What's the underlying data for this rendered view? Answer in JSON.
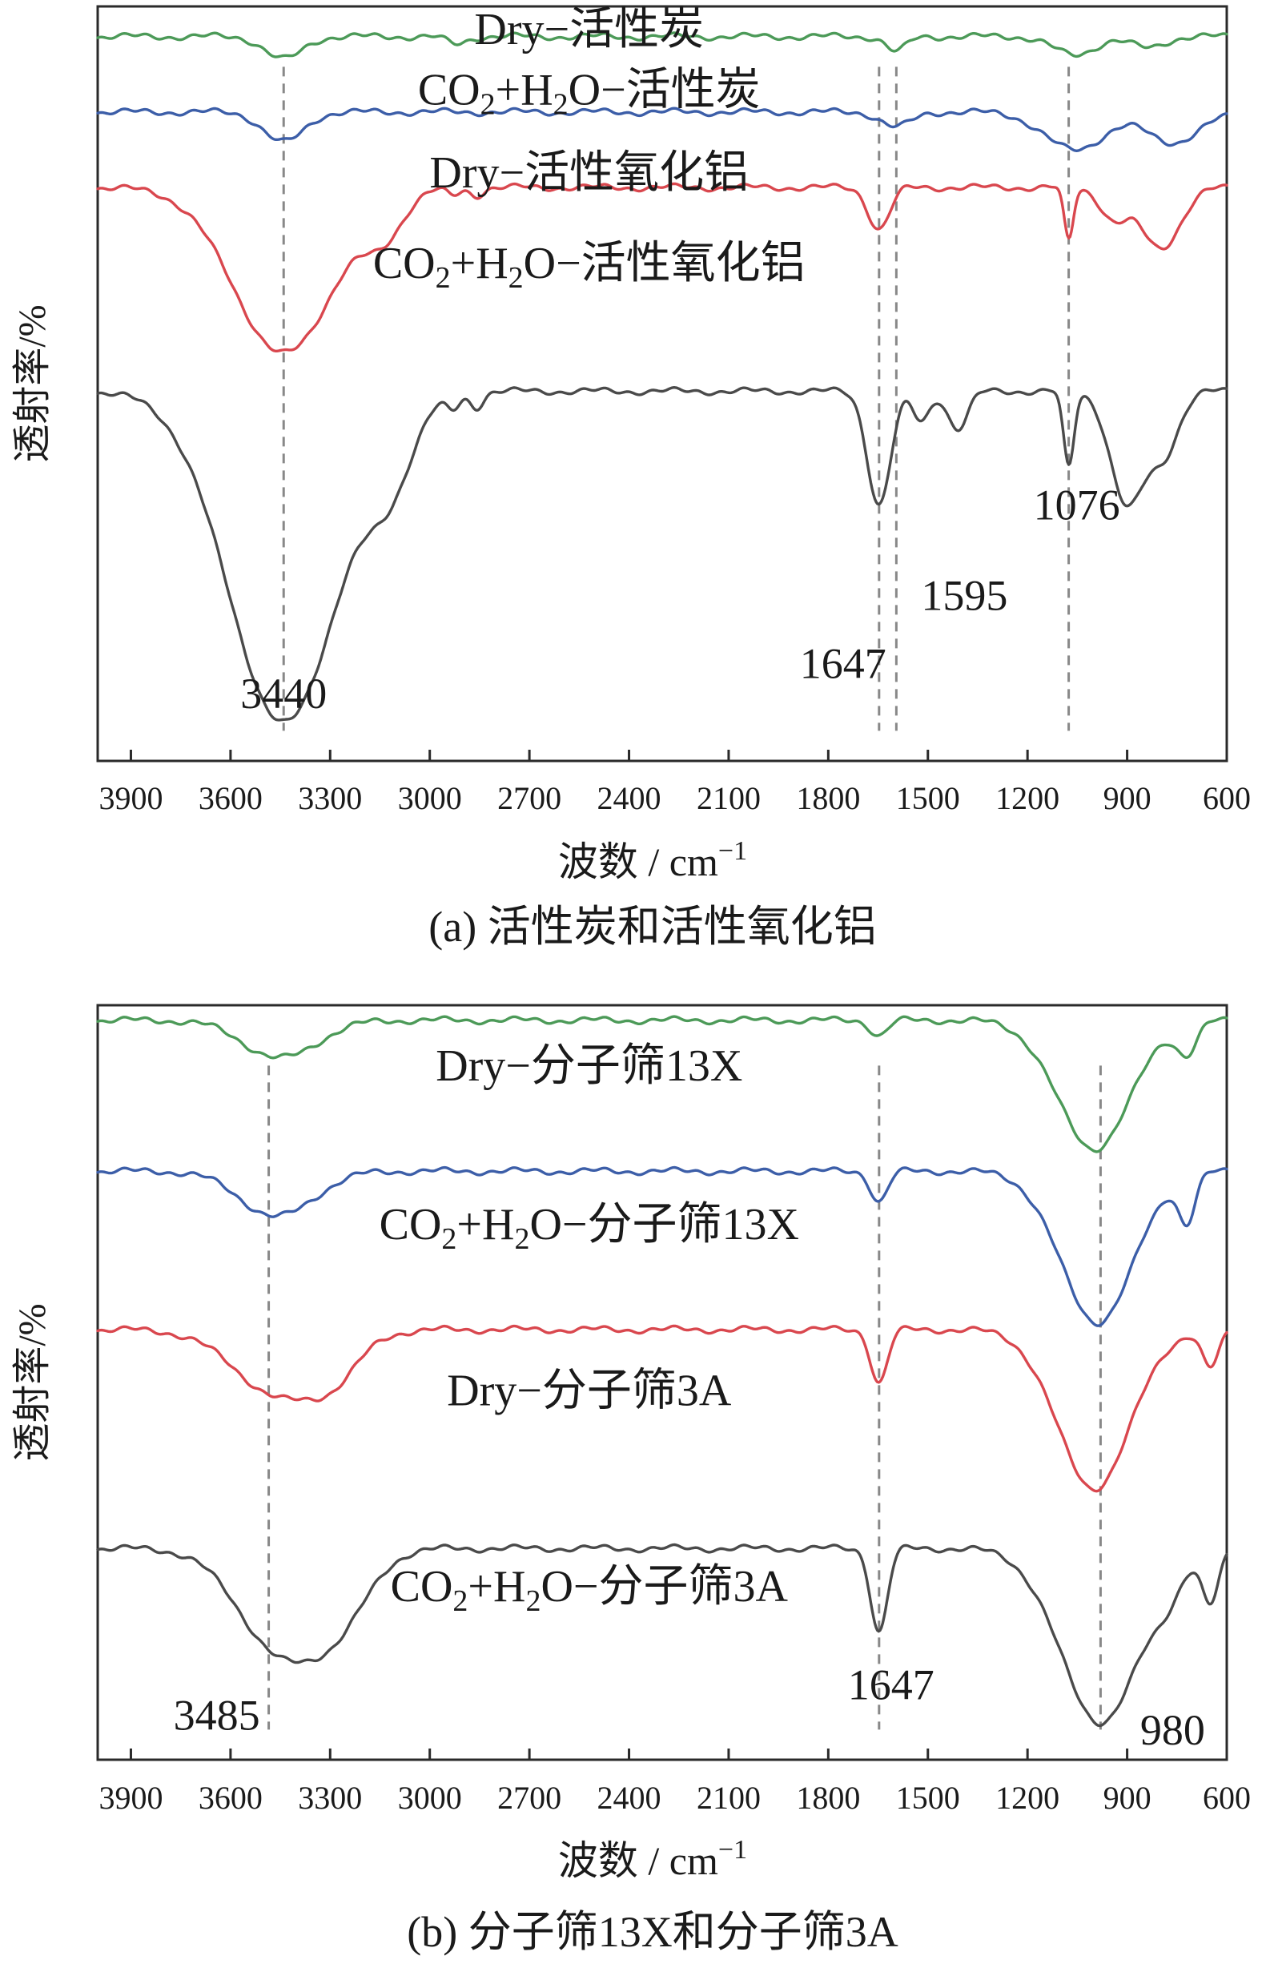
{
  "chart_data": [
    {
      "type": "line",
      "x_axis": {
        "label": "波数 / cm",
        "unit_exponent": "−1",
        "xlim": [
          4000,
          600
        ],
        "ticks": [
          3900,
          3600,
          3300,
          3000,
          2700,
          2400,
          2100,
          1800,
          1500,
          1200,
          900,
          600
        ]
      },
      "y_axis": {
        "label": "透射率/%"
      },
      "caption": "(a) 活性炭和活性氧化铝",
      "reference_lines": [
        3440,
        1647,
        1595,
        1076
      ],
      "peak_labels": [
        {
          "text": "3440",
          "x": 3440
        },
        {
          "text": "1647",
          "x": 1647
        },
        {
          "text": "1595",
          "x": 1595
        },
        {
          "text": "1076",
          "x": 1076
        }
      ],
      "series": [
        {
          "name_main": "Dry−活性炭",
          "color": "#4c9a58",
          "baseline": 0.04,
          "bands": [
            {
              "x": 3440,
              "depth": 0.03,
              "width": 55
            },
            {
              "x": 2920,
              "depth": 0.01,
              "width": 30
            },
            {
              "x": 1595,
              "depth": 0.02,
              "width": 30
            },
            {
              "x": 1060,
              "depth": 0.025,
              "width": 60
            },
            {
              "x": 840,
              "depth": 0.015,
              "width": 50
            }
          ]
        },
        {
          "name_main": "CO",
          "name_sub1": "2",
          "name_mid": "+H",
          "name_sub2": "2",
          "name_end": "O−活性炭",
          "color": "#3c5ea8",
          "baseline": 0.14,
          "bands": [
            {
              "x": 3440,
              "depth": 0.04,
              "width": 60
            },
            {
              "x": 1595,
              "depth": 0.02,
              "width": 45
            },
            {
              "x": 1060,
              "depth": 0.05,
              "width": 90
            },
            {
              "x": 760,
              "depth": 0.04,
              "width": 80
            }
          ]
        },
        {
          "name_main": "Dry−活性氧化铝",
          "color": "#d9474e",
          "baseline": 0.24,
          "bands": [
            {
              "x": 3440,
              "depth": 0.22,
              "width": 150
            },
            {
              "x": 3140,
              "depth": 0.05,
              "width": 60
            },
            {
              "x": 2930,
              "depth": 0.01,
              "width": 20
            },
            {
              "x": 2860,
              "depth": 0.01,
              "width": 20
            },
            {
              "x": 1647,
              "depth": 0.055,
              "width": 32
            },
            {
              "x": 1076,
              "depth": 0.07,
              "width": 14
            },
            {
              "x": 940,
              "depth": 0.04,
              "width": 40
            },
            {
              "x": 800,
              "depth": 0.08,
              "width": 60
            }
          ]
        },
        {
          "name_main": "CO",
          "name_sub1": "2",
          "name_mid": "+H",
          "name_sub2": "2",
          "name_end": "O−活性氧化铝",
          "color": "#4a4a4a",
          "baseline": 0.51,
          "bands": [
            {
              "x": 3440,
              "depth": 0.44,
              "width": 165
            },
            {
              "x": 3120,
              "depth": 0.09,
              "width": 70
            },
            {
              "x": 2930,
              "depth": 0.02,
              "width": 20
            },
            {
              "x": 2860,
              "depth": 0.02,
              "width": 20
            },
            {
              "x": 1647,
              "depth": 0.15,
              "width": 35
            },
            {
              "x": 1520,
              "depth": 0.04,
              "width": 25
            },
            {
              "x": 1410,
              "depth": 0.05,
              "width": 30
            },
            {
              "x": 1076,
              "depth": 0.1,
              "width": 16
            },
            {
              "x": 900,
              "depth": 0.15,
              "width": 50
            },
            {
              "x": 790,
              "depth": 0.08,
              "width": 45
            }
          ]
        }
      ],
      "label_positions": [
        {
          "series": 0,
          "x": 2520,
          "y": 0.05
        },
        {
          "series": 1,
          "x": 2520,
          "y": 0.13
        },
        {
          "series": 2,
          "x": 2520,
          "y": 0.24
        },
        {
          "series": 3,
          "x": 2520,
          "y": 0.36
        }
      ]
    },
    {
      "type": "line",
      "x_axis": {
        "label": "波数 / cm",
        "unit_exponent": "−1",
        "xlim": [
          4000,
          600
        ],
        "ticks": [
          3900,
          3600,
          3300,
          3000,
          2700,
          2400,
          2100,
          1800,
          1500,
          1200,
          900,
          600
        ]
      },
      "y_axis": {
        "label": "透射率/%"
      },
      "caption": "(b) 分子筛13X和分子筛3A",
      "reference_lines": [
        3485,
        1647,
        980
      ],
      "peak_labels": [
        {
          "text": "3485",
          "x": 3485
        },
        {
          "text": "1647",
          "x": 1647
        },
        {
          "text": "980",
          "x": 980
        }
      ],
      "series": [
        {
          "name_main": "Dry−分子筛13X",
          "color": "#4c9a58",
          "baseline": 0.02,
          "bands": [
            {
              "x": 3450,
              "depth": 0.05,
              "width": 110
            },
            {
              "x": 1647,
              "depth": 0.02,
              "width": 25
            },
            {
              "x": 1000,
              "depth": 0.17,
              "width": 110
            },
            {
              "x": 720,
              "depth": 0.04,
              "width": 30
            }
          ]
        },
        {
          "name_main": "CO",
          "name_sub1": "2",
          "name_mid": "+H",
          "name_sub2": "2",
          "name_end": "O−分子筛13X",
          "color": "#3c5ea8",
          "baseline": 0.22,
          "bands": [
            {
              "x": 3460,
              "depth": 0.06,
              "width": 110
            },
            {
              "x": 1647,
              "depth": 0.04,
              "width": 25
            },
            {
              "x": 990,
              "depth": 0.2,
              "width": 110
            },
            {
              "x": 720,
              "depth": 0.06,
              "width": 25
            }
          ]
        },
        {
          "name_main": "Dry−分子筛3A",
          "color": "#d9474e",
          "baseline": 0.43,
          "bands": [
            {
              "x": 3440,
              "depth": 0.09,
              "width": 140
            },
            {
              "x": 3280,
              "depth": 0.03,
              "width": 70
            },
            {
              "x": 1647,
              "depth": 0.07,
              "width": 25
            },
            {
              "x": 1000,
              "depth": 0.21,
              "width": 110
            },
            {
              "x": 650,
              "depth": 0.05,
              "width": 25
            }
          ]
        },
        {
          "name_main": "CO",
          "name_sub1": "2",
          "name_mid": "+H",
          "name_sub2": "2",
          "name_end": "O−分子筛3A",
          "color": "#4a4a4a",
          "baseline": 0.72,
          "bands": [
            {
              "x": 3440,
              "depth": 0.14,
              "width": 130
            },
            {
              "x": 3260,
              "depth": 0.06,
              "width": 90
            },
            {
              "x": 1647,
              "depth": 0.11,
              "width": 25
            },
            {
              "x": 980,
              "depth": 0.23,
              "width": 120
            },
            {
              "x": 780,
              "depth": 0.03,
              "width": 45
            },
            {
              "x": 650,
              "depth": 0.07,
              "width": 25
            }
          ]
        }
      ],
      "label_positions": [
        {
          "series": 0,
          "x": 2520,
          "y": 0.1
        },
        {
          "series": 1,
          "x": 2520,
          "y": 0.31
        },
        {
          "series": 2,
          "x": 2520,
          "y": 0.53
        },
        {
          "series": 3,
          "x": 2520,
          "y": 0.79
        }
      ]
    }
  ]
}
